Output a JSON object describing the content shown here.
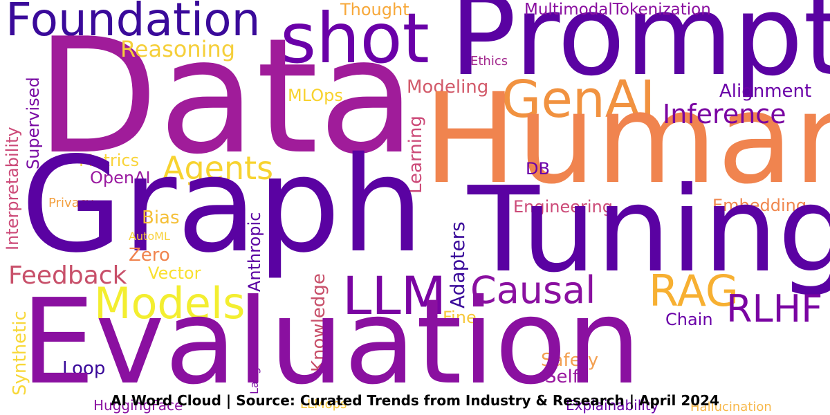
{
  "words": [
    {
      "text": "Foundation",
      "color": "#3a0a9a"
    },
    {
      "text": "shot",
      "color": "#6a00a8"
    },
    {
      "text": "Prompt",
      "color": "#5a02a2"
    },
    {
      "text": "Thought",
      "color": "#f7a83a"
    },
    {
      "text": "MultimodalTokenization",
      "color": "#8a10a0"
    },
    {
      "text": "Data",
      "color": "#a01c9a"
    },
    {
      "text": "Reasoning",
      "color": "#f5cf3a"
    },
    {
      "text": "Ethics",
      "color": "#a32a8e"
    },
    {
      "text": "GenAI",
      "color": "#f19240"
    },
    {
      "text": "Modeling",
      "color": "#d25a6a"
    },
    {
      "text": "Alignment",
      "color": "#6a00a8"
    },
    {
      "text": "Human",
      "color": "#f0844f"
    },
    {
      "text": "MLOps",
      "color": "#f8d22e"
    },
    {
      "text": "Inference",
      "color": "#7a04a2"
    },
    {
      "text": "Supervised",
      "color": "#7a0ca4"
    },
    {
      "text": "Interpretability",
      "color": "#cc4a78"
    },
    {
      "text": "Agents",
      "color": "#f7d330"
    },
    {
      "text": "Metrics",
      "color": "#f9d43a"
    },
    {
      "text": "DB",
      "color": "#6a00a8"
    },
    {
      "text": "Learning",
      "color": "#cc4a78"
    },
    {
      "text": "OpenAI",
      "color": "#9a1aa0"
    },
    {
      "text": "Privacy",
      "color": "#f3a040"
    },
    {
      "text": "Graph",
      "color": "#5a02a2"
    },
    {
      "text": "Anthropic",
      "color": "#5a02a2"
    },
    {
      "text": "Engineering",
      "color": "#cc4a78"
    },
    {
      "text": "Embedding",
      "color": "#f0874e"
    },
    {
      "text": "Tuning",
      "color": "#5a02a2"
    },
    {
      "text": "Bias",
      "color": "#f5c03a"
    },
    {
      "text": "AutoML",
      "color": "#f8d03a"
    },
    {
      "text": "Zero",
      "color": "#f0844f"
    },
    {
      "text": "Adapters",
      "color": "#3a0a9a"
    },
    {
      "text": "Vector",
      "color": "#f9e030"
    },
    {
      "text": "Feedback",
      "color": "#c8506a"
    },
    {
      "text": "Knowledge",
      "color": "#c8506a"
    },
    {
      "text": "LLM",
      "color": "#7a04a2"
    },
    {
      "text": "Causal",
      "color": "#8a10a0"
    },
    {
      "text": "RAG",
      "color": "#f7b032"
    },
    {
      "text": "RLHF",
      "color": "#7a04a2"
    },
    {
      "text": "Models",
      "color": "#f3ee30"
    },
    {
      "text": "Fine",
      "color": "#f7c83a"
    },
    {
      "text": "Chain",
      "color": "#6a00a8"
    },
    {
      "text": "Synthetic",
      "color": "#f8d83a"
    },
    {
      "text": "LangChain",
      "color": "#7a0ca4"
    },
    {
      "text": "Loop",
      "color": "#3a0a9a"
    },
    {
      "text": "Safety",
      "color": "#f3a052"
    },
    {
      "text": "Self",
      "color": "#9a1aa0"
    },
    {
      "text": "Evaluation",
      "color": "#8a10a0"
    },
    {
      "text": "HuggingFace",
      "color": "#8a10a0"
    },
    {
      "text": "LLMops",
      "color": "#f8c83a"
    },
    {
      "text": "Explainability",
      "color": "#6a00a8"
    },
    {
      "text": "Hallucination",
      "color": "#f7b84a"
    }
  ],
  "caption": "AI Word Cloud | Source: Curated Trends from Industry & Research | April 2024"
}
